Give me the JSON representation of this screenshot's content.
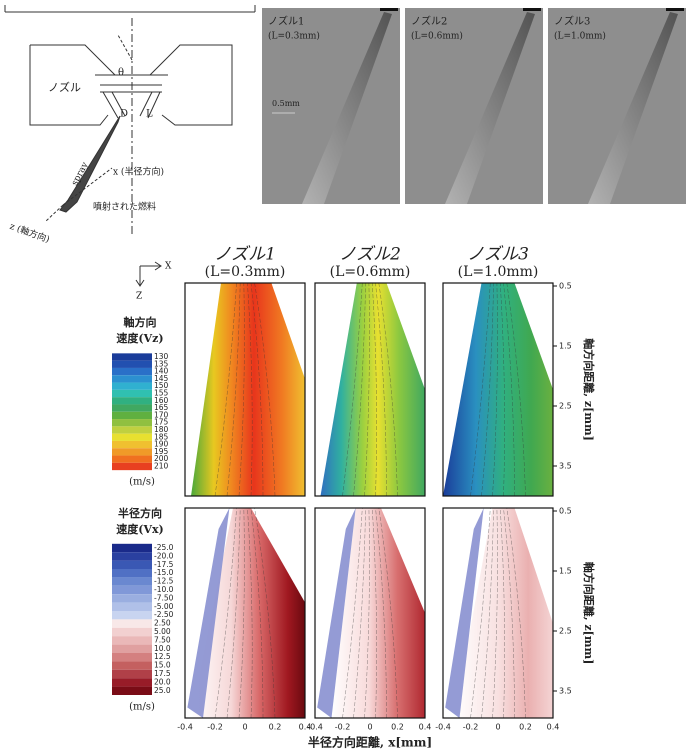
{
  "diagram": {
    "nozzle": "ノズル",
    "theta": "θ",
    "d": "D",
    "l": "L",
    "spray": "spray",
    "x_axis": "x (半径方向)",
    "z_axis": "z (軸方向)",
    "fuel": "噴射された燃料"
  },
  "photos": {
    "panels": [
      {
        "name": "ノズル1",
        "length": "(L=0.3mm)"
      },
      {
        "name": "ノズル2",
        "length": "(L=0.6mm)"
      },
      {
        "name": "ノズル3",
        "length": "(L=1.0mm)"
      }
    ],
    "scale": "0.5mm"
  },
  "contour": {
    "columns": [
      {
        "name": "ノズル1",
        "length": "(L=0.3mm)",
        "color": "#e02a1e"
      },
      {
        "name": "ノズル2",
        "length": "(L=0.6mm)",
        "color": "#3a55a8"
      },
      {
        "name": "ノズル3",
        "length": "(L=1.0mm)",
        "color": "#222222"
      }
    ],
    "axis_x": "X",
    "axis_z": "Z",
    "axial_legend": {
      "title": [
        "軸方向",
        "速度(Vz)"
      ],
      "ticks": [
        "130",
        "135",
        "140",
        "145",
        "150",
        "155",
        "160",
        "165",
        "170",
        "175",
        "180",
        "185",
        "190",
        "195",
        "200",
        "210"
      ],
      "unit": "(m/s)"
    },
    "radial_legend": {
      "title": [
        "半径方向",
        "速度(Vx)"
      ],
      "ticks": [
        "-25.0",
        "-20.0",
        "-17.5",
        "-15.0",
        "-12.5",
        "-10.0",
        "-7.50",
        "-5.00",
        "-2.50",
        "2.50",
        "5.00",
        "7.50",
        "10.0",
        "12.5",
        "15.0",
        "17.5",
        "20.0",
        "25.0"
      ],
      "unit": "(m/s)"
    },
    "z_ticks": [
      "0.5",
      "1.5",
      "2.5",
      "3.5"
    ],
    "z_label": "軸方向距離, z[mm]",
    "x_ticks": [
      "-0.4",
      "-0.2",
      "0",
      "0.2",
      "0.4"
    ],
    "x_label": "半径方向距離, x[mm]"
  }
}
